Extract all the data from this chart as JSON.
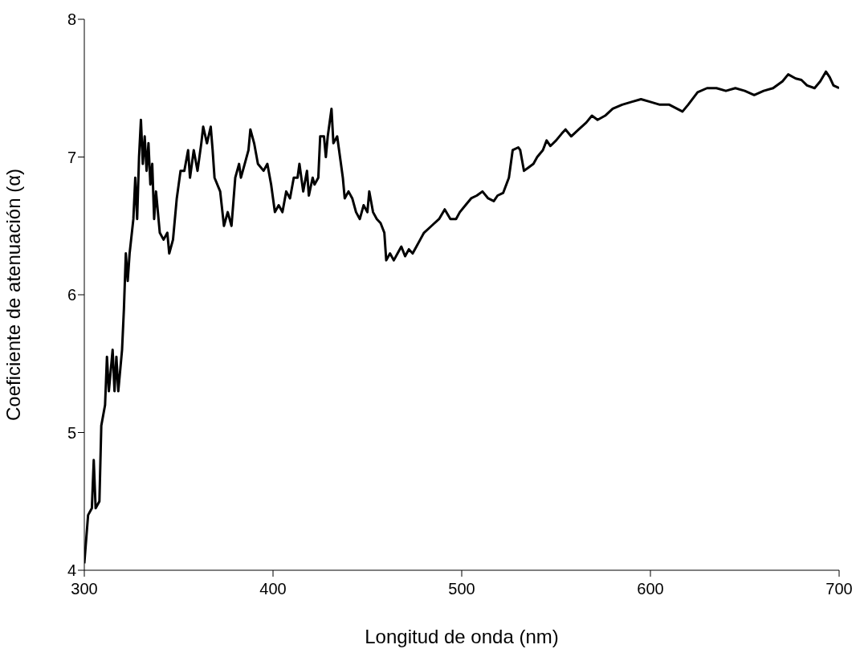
{
  "chart_data": {
    "type": "line",
    "xlabel": "Longitud de onda (nm)",
    "ylabel": "Coeficiente de atenuación (α)",
    "xlim": [
      300,
      700
    ],
    "xticks": [
      300,
      400,
      500,
      600,
      700
    ],
    "ylim": [
      4,
      8
    ],
    "yticks": [
      4,
      5,
      6,
      7,
      8
    ],
    "grid": false,
    "legend": false,
    "marker": "none",
    "line_style": "solid",
    "series": [
      {
        "color": "#000000",
        "x": [
          300,
          302,
          304,
          305,
          306,
          308,
          309,
          311,
          312,
          313,
          315,
          316,
          317,
          318,
          320,
          321,
          322,
          323,
          324,
          326,
          327,
          328,
          329,
          330,
          331,
          332,
          333,
          334,
          335,
          336,
          337,
          338,
          340,
          342,
          344,
          345,
          347,
          349,
          351,
          353,
          355,
          356,
          358,
          360,
          362,
          363,
          365,
          367,
          368,
          369,
          372,
          374,
          376,
          378,
          380,
          382,
          383,
          385,
          387,
          388,
          390,
          392,
          395,
          397,
          399,
          401,
          403,
          405,
          407,
          409,
          411,
          413,
          414,
          416,
          418,
          419,
          421,
          422,
          424,
          425,
          427,
          428,
          429,
          431,
          432,
          434,
          436,
          437,
          438,
          440,
          442,
          444,
          446,
          448,
          450,
          451,
          453,
          455,
          457,
          459,
          460,
          462,
          464,
          466,
          468,
          470,
          472,
          474,
          476,
          478,
          480,
          484,
          488,
          491,
          494,
          497,
          499,
          502,
          505,
          508,
          511,
          514,
          517,
          519,
          522,
          525,
          527,
          530,
          531,
          533,
          535,
          538,
          540,
          543,
          545,
          547,
          550,
          553,
          555,
          558,
          562,
          566,
          569,
          572,
          576,
          580,
          585,
          590,
          595,
          600,
          605,
          610,
          617,
          620,
          625,
          630,
          635,
          640,
          645,
          650,
          655,
          660,
          665,
          670,
          673,
          677,
          680,
          683,
          687,
          690,
          693,
          695,
          697,
          700
        ],
        "values": [
          4.05,
          4.4,
          4.45,
          4.8,
          4.45,
          4.5,
          5.05,
          5.2,
          5.55,
          5.3,
          5.6,
          5.3,
          5.55,
          5.3,
          5.6,
          5.9,
          6.3,
          6.1,
          6.3,
          6.55,
          6.85,
          6.55,
          7.0,
          7.27,
          6.95,
          7.15,
          6.9,
          7.1,
          6.8,
          6.95,
          6.55,
          6.75,
          6.45,
          6.4,
          6.45,
          6.3,
          6.4,
          6.7,
          6.9,
          6.9,
          7.05,
          6.85,
          7.05,
          6.9,
          7.1,
          7.22,
          7.1,
          7.22,
          7.05,
          6.85,
          6.75,
          6.5,
          6.6,
          6.5,
          6.85,
          6.95,
          6.85,
          6.95,
          7.05,
          7.2,
          7.1,
          6.95,
          6.9,
          6.95,
          6.8,
          6.6,
          6.65,
          6.6,
          6.75,
          6.7,
          6.85,
          6.85,
          6.95,
          6.75,
          6.9,
          6.72,
          6.85,
          6.8,
          6.85,
          7.15,
          7.15,
          7.0,
          7.15,
          7.35,
          7.1,
          7.15,
          6.95,
          6.85,
          6.7,
          6.75,
          6.7,
          6.6,
          6.55,
          6.65,
          6.6,
          6.75,
          6.6,
          6.55,
          6.52,
          6.45,
          6.25,
          6.3,
          6.25,
          6.3,
          6.35,
          6.28,
          6.33,
          6.3,
          6.35,
          6.4,
          6.45,
          6.5,
          6.55,
          6.62,
          6.55,
          6.55,
          6.6,
          6.65,
          6.7,
          6.72,
          6.75,
          6.7,
          6.68,
          6.72,
          6.74,
          6.85,
          7.05,
          7.07,
          7.05,
          6.9,
          6.92,
          6.95,
          7.0,
          7.05,
          7.12,
          7.08,
          7.12,
          7.17,
          7.2,
          7.15,
          7.2,
          7.25,
          7.3,
          7.27,
          7.3,
          7.35,
          7.38,
          7.4,
          7.42,
          7.4,
          7.38,
          7.38,
          7.33,
          7.38,
          7.47,
          7.5,
          7.5,
          7.48,
          7.5,
          7.48,
          7.45,
          7.48,
          7.5,
          7.55,
          7.6,
          7.57,
          7.56,
          7.52,
          7.5,
          7.55,
          7.62,
          7.58,
          7.52,
          7.5
        ]
      }
    ]
  }
}
